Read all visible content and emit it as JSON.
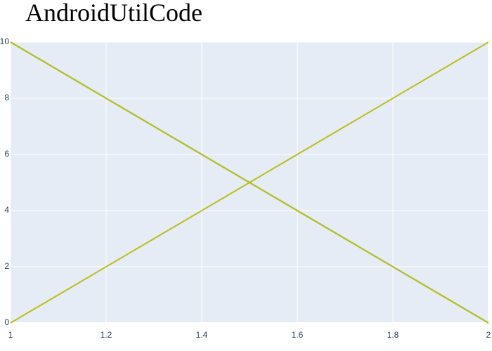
{
  "chart_data": {
    "type": "line",
    "title": "AndroidUtilCode",
    "xlabel": "",
    "ylabel": "",
    "xlim": [
      1,
      2
    ],
    "ylim": [
      0,
      10
    ],
    "grid": true,
    "x_ticks": [
      "1",
      "1.2",
      "1.4",
      "1.6",
      "1.8",
      "2"
    ],
    "x_tick_values": [
      1,
      1.2,
      1.4,
      1.6,
      1.8,
      2
    ],
    "y_ticks": [
      "0",
      "2",
      "4",
      "6",
      "8",
      "10"
    ],
    "y_tick_values": [
      0,
      2,
      4,
      6,
      8,
      10
    ],
    "series": [
      {
        "x": [
          1,
          2
        ],
        "y": [
          10,
          0
        ],
        "color": "#2ca02c"
      },
      {
        "x": [
          1,
          2
        ],
        "y": [
          10,
          0
        ],
        "color": "#bcbd22"
      },
      {
        "x": [
          1,
          2
        ],
        "y": [
          0,
          10
        ],
        "color": "#bcbd22"
      }
    ],
    "colors": {
      "plot_bg": "#e5ecf6",
      "grid": "#ffffff",
      "tick": "#2a3f5f"
    }
  }
}
